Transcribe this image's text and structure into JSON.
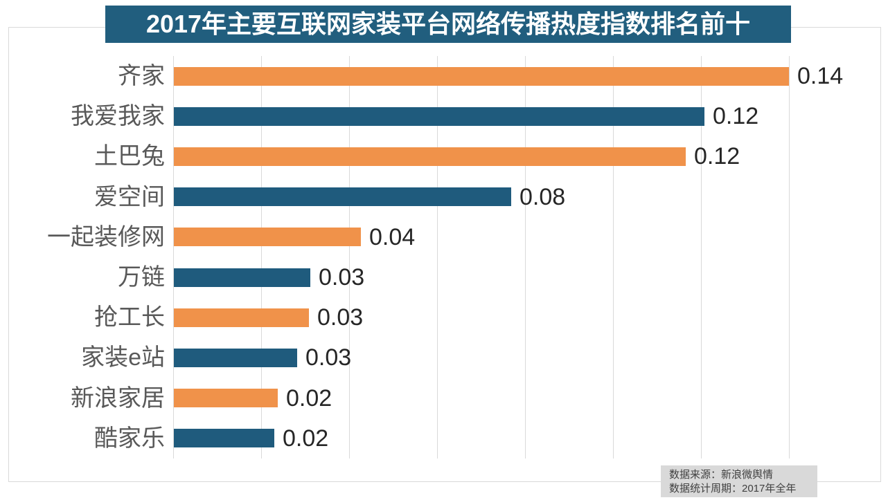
{
  "title": {
    "text": "2017年主要互联网家装平台网络传播热度指数排名前十"
  },
  "footer": {
    "source": "数据来源：新浪微舆情",
    "period": "数据统计周期：2017年全年"
  },
  "colors": {
    "orange_bar": "#F0924A",
    "blue_bar": "#1F5B7D",
    "banner_bg": "#215E7E",
    "banner_text": "#FFFFFF",
    "grid": "#D9D9D9",
    "frame_border": "#D9D9D9",
    "category_label": "#595959",
    "value_label": "#262626",
    "footer_bg": "#D9D9D9",
    "footer_text": "#404040"
  },
  "chart_data": {
    "type": "bar",
    "orientation": "horizontal",
    "title": "2017年主要互联网家装平台网络传播热度指数排名前十",
    "categories": [
      "齐家",
      "我爱我家",
      "土巴兔",
      "爱空间",
      "一起装修网",
      "万链",
      "抢工长",
      "家装e站",
      "新浪家居",
      "酷家乐"
    ],
    "values": [
      0.14,
      0.12,
      0.12,
      0.08,
      0.04,
      0.03,
      0.03,
      0.03,
      0.02,
      0.02
    ],
    "value_labels": [
      "0.14",
      "0.12",
      "0.12",
      "0.08",
      "0.04",
      "0.03",
      "0.03",
      "0.03",
      "0.02",
      "0.02"
    ],
    "values_precise": [
      0.1398,
      0.1206,
      0.1164,
      0.0767,
      0.0425,
      0.031,
      0.0307,
      0.028,
      0.0236,
      0.0228
    ],
    "xlabel": "",
    "ylabel": "",
    "xlim": [
      0,
      0.16
    ],
    "gridline_step": 0.02,
    "gridlines_visible_to": 0.14,
    "grid": true,
    "legend_position": "none",
    "bar_colors_alternate": [
      "#F0924A",
      "#1F5B7D"
    ],
    "data_labels": "outside-end",
    "source_note": "数据来源：新浪微舆情",
    "period_note": "数据统计周期：2017年全年"
  }
}
